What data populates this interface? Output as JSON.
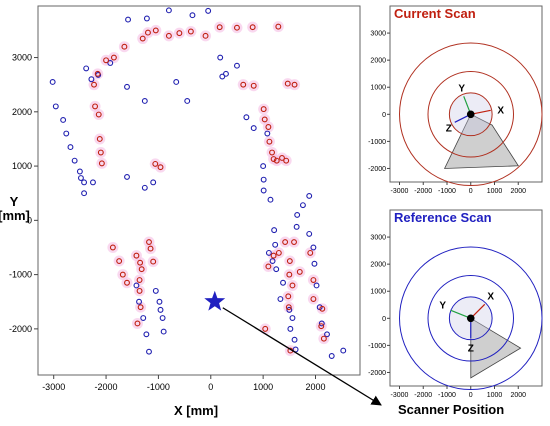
{
  "chart_data": [
    {
      "type": "scatter",
      "xlabel": "X [mm]",
      "ylabel": "Y\n[mm]",
      "xlim": [
        -3300,
        2850
      ],
      "ylim": [
        -2850,
        3950
      ],
      "xticks": [
        -3000,
        -2000,
        -1000,
        0,
        1000,
        2000
      ],
      "yticks": [
        -2000,
        -1000,
        0,
        1000,
        2000,
        3000
      ],
      "grid": false,
      "series": [
        {
          "color": "#2020b0",
          "marker": "open-circle",
          "values": [
            [
              -3020,
              2550
            ],
            [
              -2960,
              2100
            ],
            [
              -2820,
              1850
            ],
            [
              -2760,
              1600
            ],
            [
              -2680,
              1350
            ],
            [
              -2600,
              1100
            ],
            [
              -2500,
              900
            ],
            [
              -2420,
              700
            ],
            [
              -2420,
              500
            ],
            [
              -2380,
              2800
            ],
            [
              -2280,
              2600
            ],
            [
              -2150,
              2680
            ],
            [
              -1920,
              2900
            ],
            [
              -1600,
              2460
            ],
            [
              -1260,
              2200
            ],
            [
              -1580,
              3700
            ],
            [
              -1220,
              3720
            ],
            [
              -800,
              3870
            ],
            [
              -350,
              3780
            ],
            [
              -50,
              3860
            ],
            [
              -660,
              2550
            ],
            [
              -450,
              2200
            ],
            [
              -1600,
              800
            ],
            [
              -1260,
              600
            ],
            [
              -1100,
              700
            ],
            [
              -2480,
              780
            ],
            [
              -2250,
              700
            ],
            [
              -1420,
              -1200
            ],
            [
              -1370,
              -1500
            ],
            [
              -1290,
              -1800
            ],
            [
              -1230,
              -2100
            ],
            [
              -1180,
              -2420
            ],
            [
              -1050,
              -1300
            ],
            [
              -980,
              -1500
            ],
            [
              -960,
              -1650
            ],
            [
              -920,
              -1800
            ],
            [
              -900,
              -2050
            ],
            [
              180,
              3000
            ],
            [
              220,
              2650
            ],
            [
              290,
              2700
            ],
            [
              500,
              2850
            ],
            [
              680,
              1900
            ],
            [
              820,
              1700
            ],
            [
              1080,
              1600
            ],
            [
              1000,
              1000
            ],
            [
              1010,
              750
            ],
            [
              1010,
              550
            ],
            [
              1140,
              380
            ],
            [
              1210,
              -180
            ],
            [
              1230,
              -450
            ],
            [
              1110,
              -600
            ],
            [
              1180,
              -750
            ],
            [
              1250,
              -900
            ],
            [
              1380,
              -1150
            ],
            [
              1330,
              -1450
            ],
            [
              1500,
              -1650
            ],
            [
              1560,
              -1800
            ],
            [
              1520,
              -2000
            ],
            [
              1600,
              -2200
            ],
            [
              1620,
              -2380
            ],
            [
              1880,
              -250
            ],
            [
              1960,
              -500
            ],
            [
              1980,
              -800
            ],
            [
              2020,
              -1200
            ],
            [
              2080,
              -1600
            ],
            [
              2120,
              -1900
            ],
            [
              2220,
              -2100
            ],
            [
              2310,
              -2500
            ],
            [
              2530,
              -2400
            ],
            [
              1760,
              280
            ],
            [
              1880,
              450
            ],
            [
              1650,
              100
            ],
            [
              1640,
              -120
            ]
          ]
        },
        {
          "color": "#c02010",
          "marker": "open-circle",
          "values": [
            [
              -2230,
              2500
            ],
            [
              -2160,
              2700
            ],
            [
              -2000,
              2950
            ],
            [
              -1850,
              3000
            ],
            [
              -1650,
              3200
            ],
            [
              -1300,
              3350
            ],
            [
              -1200,
              3460
            ],
            [
              -1050,
              3500
            ],
            [
              -800,
              3400
            ],
            [
              -600,
              3450
            ],
            [
              -380,
              3480
            ],
            [
              -100,
              3400
            ],
            [
              170,
              3560
            ],
            [
              500,
              3550
            ],
            [
              800,
              3560
            ],
            [
              1290,
              3570
            ],
            [
              -2210,
              2100
            ],
            [
              -2140,
              1950
            ],
            [
              -2120,
              1500
            ],
            [
              -2100,
              1250
            ],
            [
              -2080,
              1050
            ],
            [
              -1060,
              1040
            ],
            [
              -960,
              980
            ],
            [
              -1870,
              -500
            ],
            [
              -1750,
              -750
            ],
            [
              -1680,
              -1000
            ],
            [
              -1600,
              -1150
            ],
            [
              -1420,
              -650
            ],
            [
              -1350,
              -780
            ],
            [
              -1320,
              -900
            ],
            [
              -1360,
              -1100
            ],
            [
              -1360,
              -1300
            ],
            [
              -1340,
              -1600
            ],
            [
              -1400,
              -1900
            ],
            [
              -1180,
              -400
            ],
            [
              -1150,
              -520
            ],
            [
              -1100,
              -760
            ],
            [
              620,
              2500
            ],
            [
              820,
              2480
            ],
            [
              1010,
              2050
            ],
            [
              1030,
              1860
            ],
            [
              1100,
              1720
            ],
            [
              1120,
              1450
            ],
            [
              1170,
              1250
            ],
            [
              1200,
              1130
            ],
            [
              1260,
              1100
            ],
            [
              1360,
              1150
            ],
            [
              1440,
              1100
            ],
            [
              1470,
              2520
            ],
            [
              1600,
              2500
            ],
            [
              1040,
              -2000
            ],
            [
              1100,
              -850
            ],
            [
              1200,
              -650
            ],
            [
              1300,
              -600
            ],
            [
              1420,
              -400
            ],
            [
              1510,
              -750
            ],
            [
              1590,
              -400
            ],
            [
              1500,
              -1000
            ],
            [
              1560,
              -1200
            ],
            [
              1480,
              -1400
            ],
            [
              1490,
              -1600
            ],
            [
              1520,
              -2400
            ],
            [
              1700,
              -950
            ],
            [
              1900,
              -600
            ],
            [
              1960,
              -1100
            ],
            [
              1960,
              -1450
            ],
            [
              2130,
              -1630
            ],
            [
              2160,
              -2180
            ],
            [
              2110,
              -1950
            ]
          ]
        }
      ],
      "annotations": [
        {
          "text": "Scanner Position",
          "points_to": [
            0,
            -1500
          ]
        }
      ]
    },
    {
      "type": "scatter",
      "title": "Current Scan",
      "title_color": "#c02010",
      "ring_color": "#b03020",
      "xlim": [
        -3400,
        3000
      ],
      "ylim": [
        -2500,
        4000
      ],
      "xticks": [
        -3000,
        -2000,
        -1000,
        0,
        1000,
        2000
      ],
      "yticks": [
        -2000,
        -1000,
        0,
        1000,
        2000,
        3000
      ],
      "rings_r": [
        900,
        1800,
        3000
      ],
      "axis_labels": [
        "X",
        "Y",
        "Z"
      ],
      "shade_wedge": [
        [
          0,
          0
        ],
        [
          -1100,
          -2000
        ],
        [
          2000,
          -1900
        ],
        [
          900,
          -400
        ]
      ]
    },
    {
      "type": "scatter",
      "title": "Reference Scan",
      "title_color": "#2020c0",
      "ring_color": "#2020c0",
      "xlim": [
        -3400,
        3000
      ],
      "ylim": [
        -2500,
        4000
      ],
      "xticks": [
        -3000,
        -2000,
        -1000,
        0,
        1000,
        2000
      ],
      "yticks": [
        -2000,
        -1000,
        0,
        1000,
        2000,
        3000
      ],
      "rings_r": [
        900,
        1800,
        3000
      ],
      "axis_labels": [
        "X",
        "Y",
        "Z"
      ],
      "shade_wedge": [
        [
          0,
          0
        ],
        [
          0,
          -2200
        ],
        [
          2100,
          -1100
        ]
      ]
    }
  ]
}
